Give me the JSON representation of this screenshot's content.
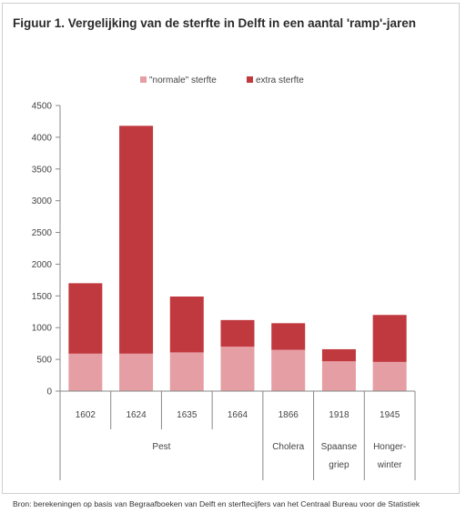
{
  "figure": {
    "title": "Figuur 1. Vergelijking van de sterfte in Delft in een aantal 'ramp'-jaren",
    "source": "Bron: berekeningen op basis van Begraafboeken van Delft en sterftecijfers van het Centraal Bureau voor de Statistiek"
  },
  "chart_data": {
    "type": "bar",
    "stacked": true,
    "categories": [
      "1602",
      "1624",
      "1635",
      "1664",
      "1866",
      "1918",
      "1945"
    ],
    "groups": [
      {
        "label": "Pest",
        "categories": [
          "1602",
          "1624",
          "1635",
          "1664"
        ]
      },
      {
        "label": "Cholera",
        "categories": [
          "1866"
        ]
      },
      {
        "label": "Spaanse griep",
        "categories": [
          "1918"
        ]
      },
      {
        "label": "Honger-winter",
        "categories": [
          "1945"
        ]
      }
    ],
    "series": [
      {
        "name": "\"normale\" sterfte",
        "color": "#e59ea4",
        "values": [
          590,
          590,
          610,
          700,
          650,
          470,
          460
        ]
      },
      {
        "name": "extra sterfte",
        "color": "#c0393e",
        "values": [
          1110,
          3590,
          880,
          420,
          420,
          190,
          740
        ]
      }
    ],
    "ylim": [
      0,
      4500
    ],
    "yticks": [
      "0",
      "500",
      "1000",
      "1500",
      "2000",
      "2500",
      "3000",
      "3500",
      "4000",
      "4500"
    ],
    "legend_position": "top",
    "grid": false
  }
}
